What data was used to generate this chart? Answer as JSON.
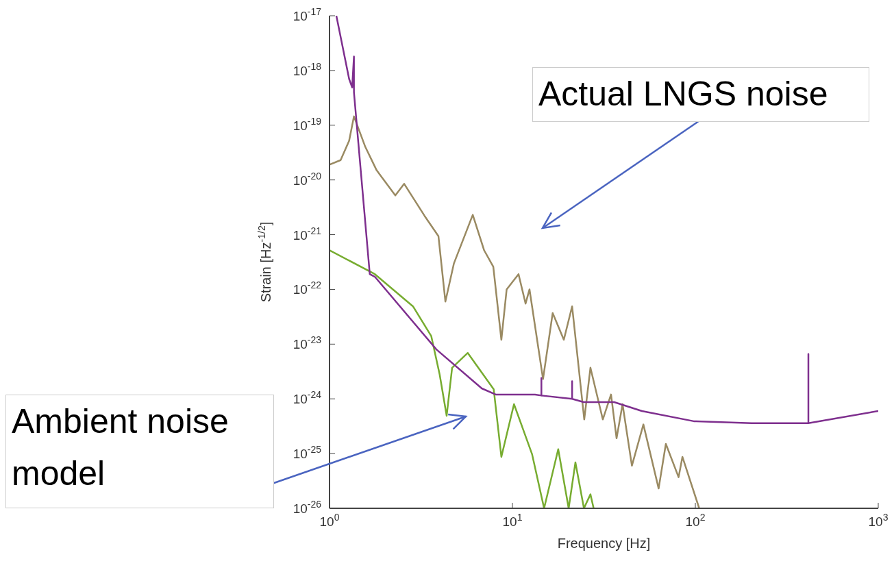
{
  "chart_data": {
    "type": "line",
    "xlabel": "Frequency [Hz]",
    "ylabel": "Strain [Hz$^{-1/2}$]",
    "log": "xy",
    "xlim": [
      1,
      1000
    ],
    "ylim": [
      1e-26,
      1e-17
    ],
    "xticks": [
      {
        "value": 1,
        "label": "10$^{0}$"
      },
      {
        "value": 10,
        "label": "10$^{1}$"
      },
      {
        "value": 100,
        "label": "10$^{2}$"
      },
      {
        "value": 1000,
        "label": "10$^{3}$"
      }
    ],
    "yticks": [
      {
        "value": 1e-26,
        "label": "10$^{-26}$"
      },
      {
        "value": 1e-25,
        "label": "10$^{-25}$"
      },
      {
        "value": 1e-24,
        "label": "10$^{-24}$"
      },
      {
        "value": 1e-23,
        "label": "10$^{-23}$"
      },
      {
        "value": 1e-22,
        "label": "10$^{-22}$"
      },
      {
        "value": 1e-21,
        "label": "10$^{-21}$"
      },
      {
        "value": 1e-20,
        "label": "10$^{-20}$"
      },
      {
        "value": 1e-19,
        "label": "10$^{-19}$"
      },
      {
        "value": 1e-18,
        "label": "10$^{-18}$"
      },
      {
        "value": 1e-17,
        "label": "10$^{-17}$"
      }
    ],
    "line_style": "solid",
    "series": [
      {
        "color": "#9a8a62",
        "x": [
          1,
          1.15,
          1.28,
          1.36,
          1.57,
          1.81,
          2.29,
          2.56,
          3.31,
          3.94,
          4.3,
          4.79,
          6.07,
          7,
          7.86,
          8.7,
          9.3,
          10.8,
          11.8,
          12.4,
          14.7,
          16.6,
          19.1,
          21.2,
          24.7,
          26.7,
          31.2,
          34.6,
          37.1,
          40,
          45,
          52,
          63,
          69,
          81,
          85,
          105
        ],
        "values": [
          1.9e-20,
          2.3e-20,
          5.2e-20,
          1.45e-19,
          4e-20,
          1.5e-20,
          5.2e-21,
          8.5e-21,
          2.2e-21,
          9.4e-22,
          6e-23,
          3e-22,
          2.3e-21,
          5.2e-22,
          2.6e-22,
          1.2e-23,
          1e-22,
          1.9e-22,
          5.5e-23,
          1e-22,
          2.3e-24,
          3.7e-23,
          1.2e-23,
          4.9e-23,
          4.2e-25,
          3.7e-24,
          4.2e-25,
          1.2e-24,
          1.9e-25,
          8e-25,
          6e-26,
          3.4e-25,
          2.3e-26,
          1.5e-25,
          3.7e-26,
          8.7e-26,
          1e-26
        ]
      },
      {
        "color": "#77ac30",
        "x": [
          1,
          1.77,
          2.86,
          3.6,
          4,
          4.37,
          4.68,
          5.7,
          7.9,
          8.7,
          10.2,
          12.8,
          14.9,
          17.8,
          20.3,
          22.1,
          24.6,
          26.7,
          27.8
        ],
        "values": [
          5.2e-22,
          1.9e-22,
          4.9e-23,
          1.4e-23,
          2.8e-24,
          4.9e-25,
          3.7e-24,
          6.9e-24,
          1.5e-24,
          8.7e-26,
          8e-25,
          9.8e-26,
          1e-26,
          1.2e-25,
          1e-26,
          6.9e-26,
          1e-26,
          1.8e-26,
          1e-26
        ]
      },
      {
        "color": "#7e2f8e",
        "x": [
          1.09,
          1.28,
          1.33,
          1.36,
          1.36,
          1.66,
          1.77,
          3.84,
          6.8,
          8.1,
          13.3,
          14.4,
          14.4,
          14.4,
          21.2,
          21.2,
          21.2,
          24.5,
          36,
          51,
          98,
          203,
          415,
          415,
          415,
          1000
        ],
        "values": [
          1e-17,
          7e-19,
          4.9e-19,
          1.8e-18,
          4e-19,
          1.9e-22,
          1.7e-22,
          8e-24,
          1.55e-24,
          1.2e-24,
          1.2e-24,
          1.15e-24,
          2.4e-24,
          1.15e-24,
          1e-24,
          2.1e-24,
          1e-24,
          8.7e-25,
          8.7e-25,
          6e-25,
          3.9e-25,
          3.6e-25,
          3.6e-25,
          6.6e-24,
          3.6e-25,
          6e-25
        ]
      }
    ],
    "annotations": [
      "Actual LNGS noise",
      "Ambient noise model"
    ]
  }
}
